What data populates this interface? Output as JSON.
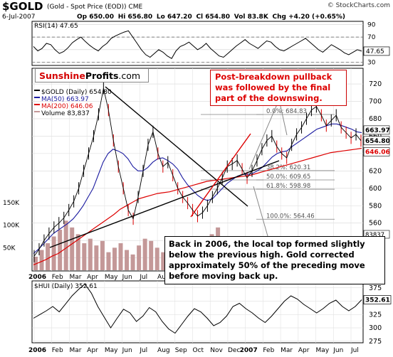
{
  "header": {
    "symbol": "$GOLD",
    "description": "(Gold - Spot Price (EOD)) CME",
    "brand": "© StockCharts.com",
    "date": "6-Jul-2007",
    "quote": {
      "op": "Op 650.00",
      "hi": "Hi 656.80",
      "lo": "Lo 647.20",
      "cl": "Cl 654.80",
      "vol": "Vol 83.8K",
      "chg": "Chg +4.20 (+0.65%)"
    }
  },
  "logo": {
    "part1": "Sunshine",
    "part2": "Profits",
    "part3": ".com"
  },
  "notes": {
    "pullback": "Post-breakdown pullback was followed by the final part of the downswing.",
    "top2006": "Back in 2006, the local top formed slightly below the previous high. Gold corrected approximately 50% of the preceding move before moving back up."
  },
  "colors": {
    "price": "#000000",
    "ma50": "#1a1aa0",
    "ma200": "#dd0000",
    "volume": "#c49898",
    "rsi": "#000000",
    "hui": "#000000",
    "fib": "#808080",
    "accent_red": "#dd0000"
  },
  "chart_data": [
    {
      "type": "line",
      "name": "rsi-panel",
      "title": "RSI(14) 47.65",
      "current": "47.65",
      "ylim": [
        25,
        95
      ],
      "yticks": [
        90,
        70,
        50,
        30
      ],
      "levels": [
        70,
        30
      ],
      "values": [
        55,
        48,
        52,
        60,
        58,
        50,
        44,
        47,
        53,
        61,
        66,
        70,
        63,
        57,
        52,
        48,
        55,
        60,
        68,
        72,
        75,
        78,
        80,
        70,
        60,
        50,
        42,
        38,
        44,
        50,
        46,
        40,
        36,
        48,
        55,
        58,
        62,
        56,
        50,
        54,
        60,
        52,
        46,
        40,
        38,
        44,
        50,
        56,
        61,
        66,
        60,
        56,
        52,
        58,
        64,
        62,
        55,
        50,
        48,
        52,
        56,
        60,
        64,
        68,
        62,
        56,
        50,
        46,
        52,
        58,
        54,
        50,
        45,
        42,
        46,
        50,
        47.65
      ],
      "grid": true
    },
    {
      "type": "line",
      "name": "gold-panel",
      "title": "$GOLD (Daily) 654.80",
      "legend": [
        "$GOLD (Daily) 654.80",
        "MA(50) 663.97",
        "MA(200) 646.06",
        "Volume 83,837"
      ],
      "legend_placement": "top-left",
      "ylim": [
        505,
        738
      ],
      "yticks": [
        720,
        700,
        680,
        660,
        640,
        620,
        600,
        580,
        560,
        540,
        520
      ],
      "volume_ticks": [
        "150K",
        "100K",
        "50K"
      ],
      "x_labels": [
        "2006",
        "Feb",
        "Mar",
        "Apr",
        "May",
        "Jun",
        "Jul",
        "Aug",
        "Sep",
        "Oct",
        "Nov",
        "Dec",
        "2007",
        "Feb",
        "Mar",
        "Apr",
        "May",
        "Jun",
        "Jul"
      ],
      "price": [
        522,
        530,
        540,
        548,
        555,
        560,
        566,
        575,
        585,
        600,
        620,
        640,
        660,
        685,
        715,
        690,
        655,
        625,
        600,
        575,
        565,
        590,
        620,
        650,
        665,
        640,
        625,
        630,
        615,
        600,
        590,
        583,
        575,
        568,
        572,
        580,
        590,
        600,
        612,
        625,
        628,
        632,
        622,
        612,
        620,
        632,
        645,
        655,
        660,
        648,
        640,
        635,
        650,
        662,
        670,
        680,
        690,
        694,
        684,
        672,
        678,
        684,
        670,
        664,
        658,
        662,
        654.8
      ],
      "ma50": [
        525,
        530,
        536,
        542,
        548,
        552,
        556,
        560,
        565,
        572,
        580,
        590,
        600,
        615,
        630,
        640,
        645,
        643,
        640,
        634,
        625,
        620,
        620,
        624,
        630,
        634,
        635,
        632,
        628,
        622,
        612,
        604,
        598,
        592,
        588,
        586,
        588,
        594,
        600,
        606,
        610,
        614,
        616,
        616,
        617,
        620,
        624,
        630,
        636,
        640,
        642,
        643,
        648,
        652,
        656,
        660,
        664,
        668,
        670,
        672,
        674,
        674,
        672,
        670,
        668,
        665,
        663.97
      ],
      "ma200": [
        512,
        515,
        518,
        522,
        525,
        530,
        535,
        540,
        545,
        550,
        555,
        560,
        565,
        570,
        576,
        580,
        584,
        588,
        590,
        592,
        594,
        595,
        596,
        598,
        600,
        602,
        604,
        606,
        608,
        609,
        610,
        611,
        612,
        613,
        614,
        615,
        617,
        619,
        621,
        623,
        625,
        627,
        629,
        631,
        633,
        635,
        637,
        639,
        641,
        642,
        643,
        644,
        645,
        646.06
      ],
      "volume": [
        30,
        45,
        60,
        75,
        90,
        110,
        95,
        80,
        60,
        70,
        55,
        65,
        40,
        50,
        60,
        45,
        35,
        55,
        70,
        65,
        50,
        40,
        55,
        60,
        45,
        35,
        30,
        50,
        65,
        80,
        95,
        70,
        55,
        40,
        30,
        25,
        35,
        40,
        50,
        45,
        40,
        35,
        30,
        25,
        20,
        18,
        15,
        12,
        10,
        8,
        6,
        5,
        4,
        3
      ],
      "volume_last": "83837",
      "price_label": "654.80",
      "ma50_label": "663.97",
      "ma200_label": "646.06",
      "fib_levels": [
        {
          "label": "0.0%: 684.83",
          "value": 684.83
        },
        {
          "label": "38.2%: 620.31",
          "value": 620.31
        },
        {
          "label": "50.0%: 609.65",
          "value": 609.65
        },
        {
          "label": "61.8%: 598.98",
          "value": 598.98
        },
        {
          "label": "100.0%: 564.46",
          "value": 564.46
        }
      ],
      "grid": true
    },
    {
      "type": "line",
      "name": "hui-panel",
      "title": "$HUI (Daily) 352.61",
      "current": "352.61",
      "ylim": [
        272,
        388
      ],
      "yticks": [
        375,
        350,
        325,
        300,
        275
      ],
      "values": [
        318,
        325,
        332,
        340,
        330,
        345,
        360,
        372,
        382,
        365,
        340,
        320,
        300,
        318,
        335,
        328,
        312,
        322,
        338,
        330,
        312,
        298,
        290,
        306,
        322,
        336,
        330,
        318,
        304,
        310,
        322,
        340,
        346,
        336,
        328,
        318,
        310,
        322,
        336,
        350,
        360,
        354,
        344,
        336,
        328,
        336,
        346,
        352,
        340,
        332,
        340,
        352.61
      ],
      "grid": true
    }
  ]
}
